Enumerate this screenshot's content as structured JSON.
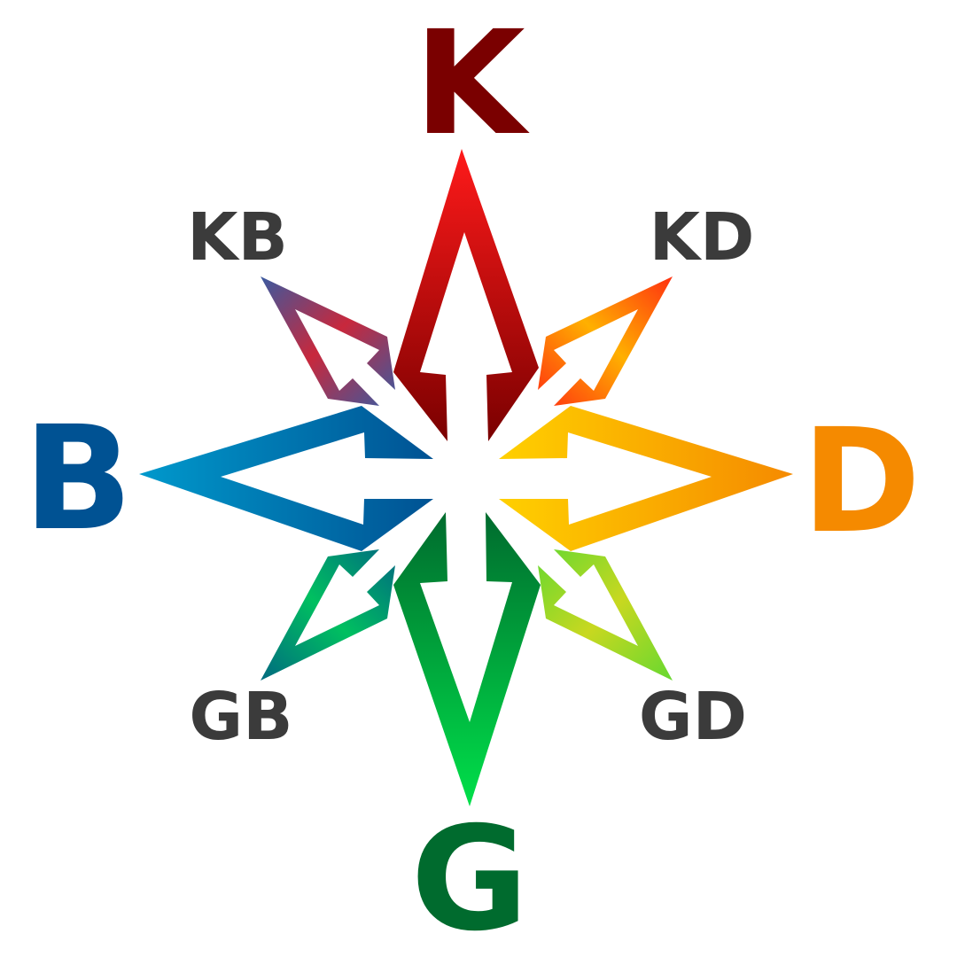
{
  "labels": {
    "north": "K",
    "south": "G",
    "west": "B",
    "east": "D",
    "north_west": "KB",
    "north_east": "KD",
    "south_west": "GB",
    "south_east": "GD"
  },
  "colors": {
    "north": "#7a0000",
    "south": "#006b2e",
    "west": "#005293",
    "east": "#f58a00",
    "diagonal_text": "#3b3b3b",
    "north_light": "#ff1a1a",
    "south_light": "#00e04a",
    "west_light": "#0099cc",
    "east_light": "#ffd000",
    "nw_a": "#3a5aa0",
    "nw_b": "#c8283c",
    "ne_a": "#ffb000",
    "ne_b": "#ff3010",
    "sw_a": "#006a80",
    "sw_b": "#00c060",
    "se_a": "#66d830",
    "se_b": "#c8d820"
  }
}
